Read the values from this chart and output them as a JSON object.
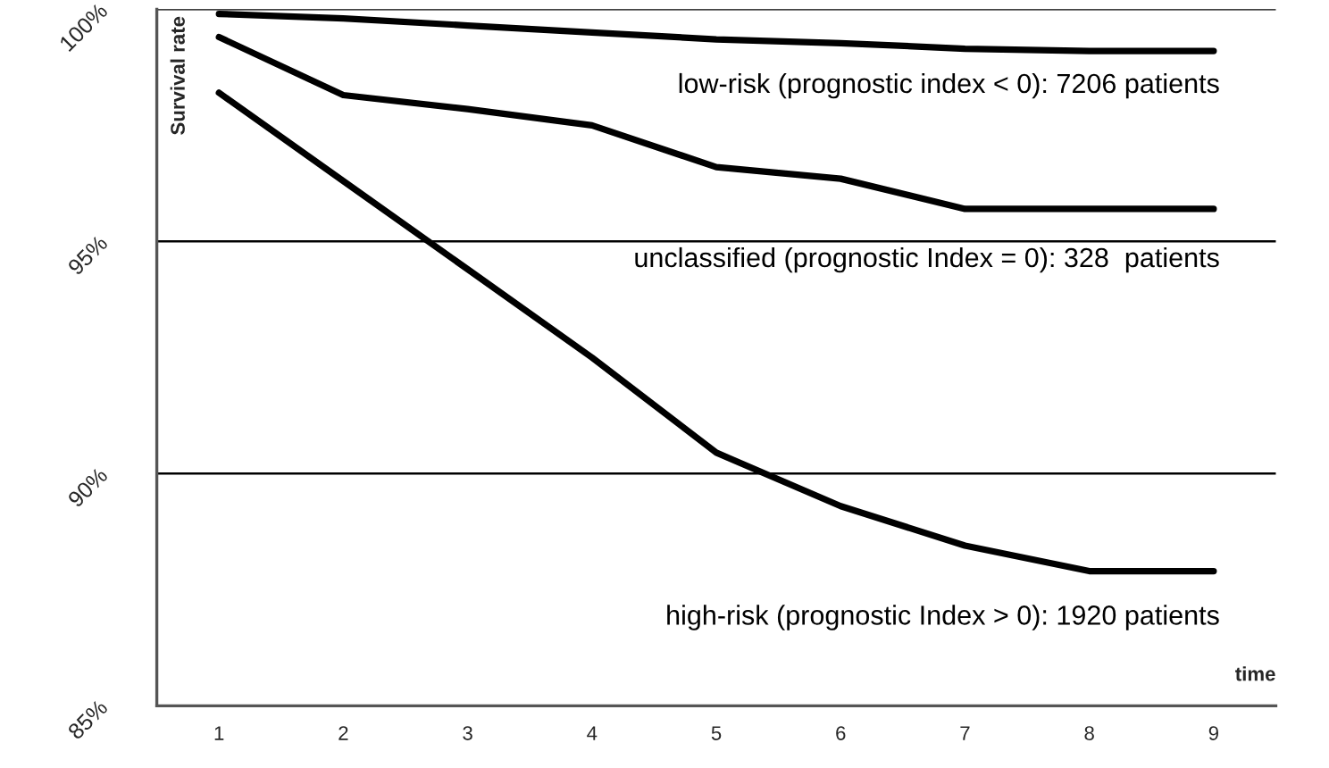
{
  "chart_data": {
    "type": "line",
    "xlabel": "time",
    "ylabel": "Survival rate",
    "categories": [
      "1",
      "2",
      "3",
      "4",
      "5",
      "6",
      "7",
      "8",
      "9"
    ],
    "series": [
      {
        "name": "low-risk (prognostic index < 0): 7206 patients",
        "color": "#000000",
        "values": [
          99.9,
          99.8,
          99.65,
          99.5,
          99.35,
          99.27,
          99.15,
          99.1,
          99.1
        ]
      },
      {
        "name": "unclassified (prognostic Index = 0): 328  patients",
        "color": "#000000",
        "values": [
          99.4,
          98.15,
          97.85,
          97.5,
          96.6,
          96.35,
          95.7,
          95.7,
          95.7
        ]
      },
      {
        "name": "high-risk (prognostic Index > 0): 1920 patients",
        "color": "#000000",
        "values": [
          98.2,
          96.3,
          94.4,
          92.5,
          90.45,
          89.3,
          88.45,
          87.9,
          87.9
        ]
      }
    ],
    "ylim": [
      85,
      100
    ],
    "yticks": [
      {
        "value": 85,
        "label": "85%"
      },
      {
        "value": 90,
        "label": "90%"
      },
      {
        "value": 95,
        "label": "95%"
      },
      {
        "value": 100,
        "label": "100%"
      }
    ],
    "grid": "y",
    "legend": false,
    "marker": "none",
    "line_style": "solid"
  }
}
